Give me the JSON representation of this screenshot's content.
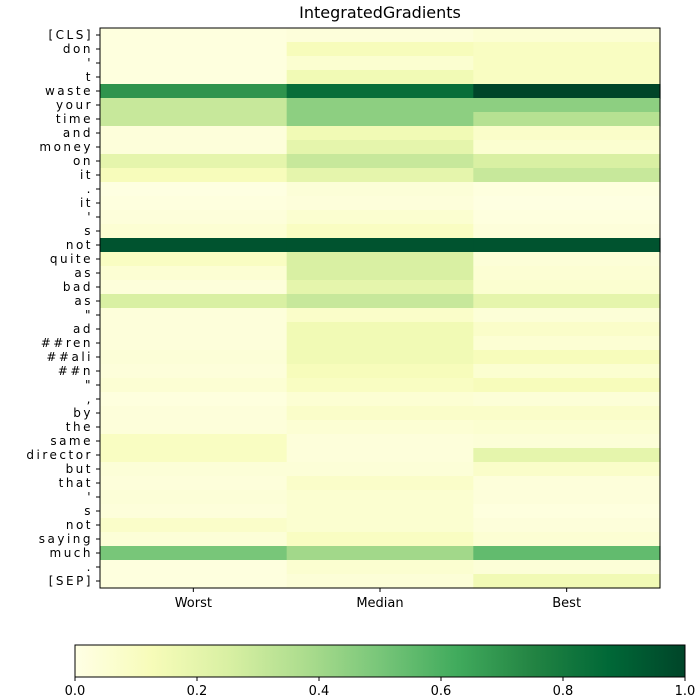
{
  "chart_data": {
    "type": "heatmap",
    "title": "IntegratedGradients",
    "columns": [
      "Worst",
      "Median",
      "Best"
    ],
    "rows": [
      "[CLS]",
      "don",
      "'",
      "t",
      "waste",
      "your",
      "time",
      "and",
      "money",
      "on",
      "it",
      ".",
      "it",
      "'",
      "s",
      "not",
      "quite",
      "as",
      "bad",
      "as",
      "\"",
      "ad",
      "##ren",
      "##ali",
      "##n",
      "\"",
      ",",
      "by",
      "the",
      "same",
      "director",
      "but",
      "that",
      "'",
      "s",
      "not",
      "saying",
      "much",
      ".",
      "[SEP]"
    ],
    "values": [
      [
        0.02,
        0.03,
        0.05
      ],
      [
        0.02,
        0.12,
        0.1
      ],
      [
        0.02,
        0.06,
        0.1
      ],
      [
        0.02,
        0.15,
        0.1
      ],
      [
        0.7,
        0.85,
        1.0
      ],
      [
        0.3,
        0.45,
        0.45
      ],
      [
        0.3,
        0.45,
        0.35
      ],
      [
        0.03,
        0.15,
        0.08
      ],
      [
        0.03,
        0.2,
        0.06
      ],
      [
        0.2,
        0.3,
        0.25
      ],
      [
        0.12,
        0.2,
        0.3
      ],
      [
        0.01,
        0.04,
        0.02
      ],
      [
        0.02,
        0.03,
        0.01
      ],
      [
        0.03,
        0.06,
        0.02
      ],
      [
        0.05,
        0.1,
        0.03
      ],
      [
        0.95,
        0.95,
        0.95
      ],
      [
        0.1,
        0.25,
        0.04
      ],
      [
        0.05,
        0.25,
        0.05
      ],
      [
        0.03,
        0.2,
        0.06
      ],
      [
        0.25,
        0.3,
        0.2
      ],
      [
        0.03,
        0.08,
        0.04
      ],
      [
        0.03,
        0.15,
        0.08
      ],
      [
        0.03,
        0.15,
        0.05
      ],
      [
        0.04,
        0.15,
        0.12
      ],
      [
        0.03,
        0.12,
        0.06
      ],
      [
        0.05,
        0.1,
        0.12
      ],
      [
        0.02,
        0.05,
        0.04
      ],
      [
        0.03,
        0.08,
        0.08
      ],
      [
        0.03,
        0.05,
        0.06
      ],
      [
        0.1,
        0.03,
        0.04
      ],
      [
        0.1,
        0.03,
        0.2
      ],
      [
        0.04,
        0.04,
        0.08
      ],
      [
        0.03,
        0.08,
        0.03
      ],
      [
        0.04,
        0.06,
        0.03
      ],
      [
        0.03,
        0.06,
        0.02
      ],
      [
        0.08,
        0.06,
        0.03
      ],
      [
        0.04,
        0.1,
        0.05
      ],
      [
        0.5,
        0.4,
        0.55
      ],
      [
        0.02,
        0.06,
        0.04
      ],
      [
        0.02,
        0.04,
        0.15
      ]
    ],
    "colormap": "YlGn",
    "colormap_stops": [
      "#ffffe5",
      "#f7fcb9",
      "#d9f0a3",
      "#addd8e",
      "#78c679",
      "#41ab5d",
      "#238443",
      "#006837",
      "#004529"
    ],
    "colorbar": {
      "range": [
        0.0,
        1.0
      ],
      "ticks": [
        "0.0",
        "0.2",
        "0.4",
        "0.6",
        "0.8",
        "1.0"
      ]
    }
  }
}
